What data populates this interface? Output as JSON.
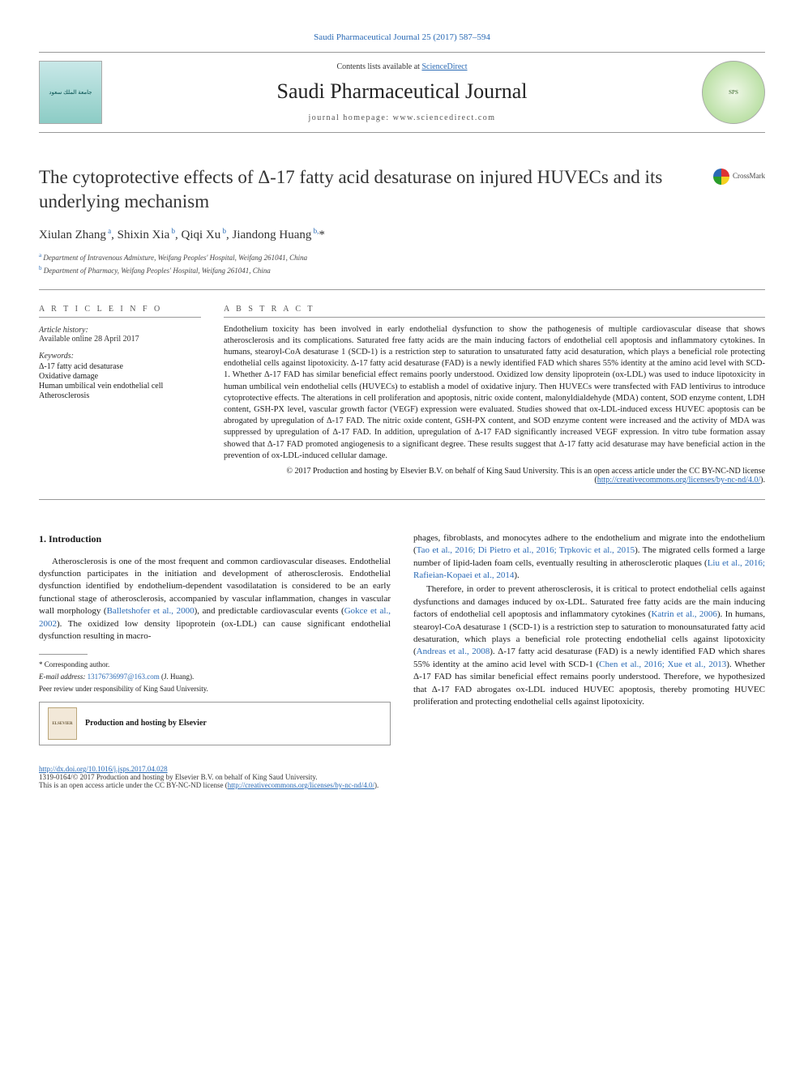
{
  "top_citation": "Saudi Pharmaceutical Journal 25 (2017) 587–594",
  "header": {
    "contents_prefix": "Contents lists available at ",
    "contents_link": "ScienceDirect",
    "journal_name": "Saudi Pharmaceutical Journal",
    "homepage_label": "journal homepage: www.sciencedirect.com",
    "logo_left_text": "جامعة الملك سعود",
    "logo_right_text": "SPS"
  },
  "article": {
    "title": "The cytoprotective effects of Δ-17 fatty acid desaturase on injured HUVECs and its underlying mechanism",
    "crossmark_label": "CrossMark",
    "authors_html": "Xiulan Zhang<sup> a</sup>, Shixin Xia<sup> b</sup>, Qiqi Xu<sup> b</sup>, Jiandong Huang<sup> b,</sup>*",
    "affiliations": [
      {
        "sup": "a",
        "text": "Department of Intravenous Admixture, Weifang Peoples' Hospital, Weifang 261041, China"
      },
      {
        "sup": "b",
        "text": "Department of Pharmacy, Weifang Peoples' Hospital, Weifang 261041, China"
      }
    ]
  },
  "info": {
    "heading": "A R T I C L E   I N F O",
    "history_label": "Article history:",
    "history_text": "Available online 28 April 2017",
    "keywords_label": "Keywords:",
    "keywords": [
      "Δ-17 fatty acid desaturase",
      "Oxidative damage",
      "Human umbilical vein endothelial cell",
      "Atherosclerosis"
    ]
  },
  "abstract": {
    "heading": "A B S T R A C T",
    "text": "Endothelium toxicity has been involved in early endothelial dysfunction to show the pathogenesis of multiple cardiovascular disease that shows atherosclerosis and its complications. Saturated free fatty acids are the main inducing factors of endothelial cell apoptosis and inflammatory cytokines. In humans, stearoyl-CoA desaturase 1 (SCD-1) is a restriction step to saturation to unsaturated fatty acid desaturation, which plays a beneficial role protecting endothelial cells against lipotoxicity. Δ-17 fatty acid desaturase (FAD) is a newly identified FAD which shares 55% identity at the amino acid level with SCD-1. Whether Δ-17 FAD has similar beneficial effect remains poorly understood. Oxidized low density lipoprotein (ox-LDL) was used to induce lipotoxicity in human umbilical vein endothelial cells (HUVECs) to establish a model of oxidative injury. Then HUVECs were transfected with FAD lentivirus to introduce cytoprotective effects. The alterations in cell proliferation and apoptosis, nitric oxide content, malonyldialdehyde (MDA) content, SOD enzyme content, LDH content, GSH-PX level, vascular growth factor (VEGF) expression were evaluated. Studies showed that ox-LDL-induced excess HUVEC apoptosis can be abrogated by upregulation of Δ-17 FAD. The nitric oxide content, GSH-PX content, and SOD enzyme content were increased and the activity of MDA was suppressed by upregulation of Δ-17 FAD. In addition, upregulation of Δ-17 FAD significantly increased VEGF expression. In vitro tube formation assay showed that Δ-17 FAD promoted angiogenesis to a significant degree. These results suggest that Δ-17 fatty acid desaturase may have beneficial action in the prevention of ox-LDL-induced cellular damage.",
    "copyright": "© 2017 Production and hosting by Elsevier B.V. on behalf of King Saud University. This is an open access article under the CC BY-NC-ND license (",
    "license_url": "http://creativecommons.org/licenses/by-nc-nd/4.0/",
    "copyright_close": ")."
  },
  "body": {
    "left": {
      "section_heading": "1. Introduction",
      "p1_a": "Atherosclerosis is one of the most frequent and common cardiovascular diseases. Endothelial dysfunction participates in the initiation and development of atherosclerosis. Endothelial dysfunction identified by endothelium-dependent vasodilatation is considered to be an early functional stage of atherosclerosis, accompanied by vascular inflammation, changes in vascular wall morphology (",
      "p1_cite1": "Balletshofer et al., 2000",
      "p1_b": "), and predictable cardiovascular events (",
      "p1_cite2": "Gokce et al., 2002",
      "p1_c": "). The oxidized low density lipoprotein (ox-LDL) can cause significant endothelial dysfunction resulting in macro-"
    },
    "right": {
      "p1_a": "phages, fibroblasts, and monocytes adhere to the endothelium and migrate into the endothelium (",
      "p1_cite1": "Tao et al., 2016; Di Pietro et al., 2016; Trpkovic et al., 2015",
      "p1_b": "). The migrated cells formed a large number of lipid-laden foam cells, eventually resulting in atherosclerotic plaques (",
      "p1_cite2": "Liu et al., 2016; Rafieian-Kopaei et al., 2014",
      "p1_c": ").",
      "p2_a": "Therefore, in order to prevent atherosclerosis, it is critical to protect endothelial cells against dysfunctions and damages induced by ox-LDL. Saturated free fatty acids are the main inducing factors of endothelial cell apoptosis and inflammatory cytokines (",
      "p2_cite1": "Katrin et al., 2006",
      "p2_b": "). In humans, stearoyl-CoA desaturase 1 (SCD-1) is a restriction step to saturation to monounsaturated fatty acid desaturation, which plays a beneficial role protecting endothelial cells against lipotoxicity (",
      "p2_cite2": "Andreas et al., 2008",
      "p2_c": "). Δ-17 fatty acid desaturase (FAD) is a newly identified FAD which shares 55% identity at the amino acid level with SCD-1 (",
      "p2_cite3": "Chen et al., 2016; Xue et al., 2013",
      "p2_d": "). Whether Δ-17 FAD has similar beneficial effect remains poorly understood. Therefore, we hypothesized that Δ-17 FAD abrogates ox-LDL induced HUVEC apoptosis, thereby promoting HUVEC proliferation and protecting endothelial cells against lipotoxicity."
    }
  },
  "footnotes": {
    "corresponding": "* Corresponding author.",
    "email_label": "E-mail address: ",
    "email": "13176736997@163.com",
    "email_suffix": " (J. Huang).",
    "peer_review": "Peer review under responsibility of King Saud University.",
    "hosting_text": "Production and hosting by Elsevier",
    "elsevier_mark": "ELSEVIER"
  },
  "footer": {
    "doi": "http://dx.doi.org/10.1016/j.jsps.2017.04.028",
    "issn_line": "1319-0164/© 2017 Production and hosting by Elsevier B.V. on behalf of King Saud University.",
    "license_line": "This is an open access article under the CC BY-NC-ND license (",
    "license_url": "http://creativecommons.org/licenses/by-nc-nd/4.0/",
    "license_close": ")."
  },
  "colors": {
    "link": "#2a6ab5",
    "text": "#1a1a1a",
    "rule": "#999999"
  }
}
